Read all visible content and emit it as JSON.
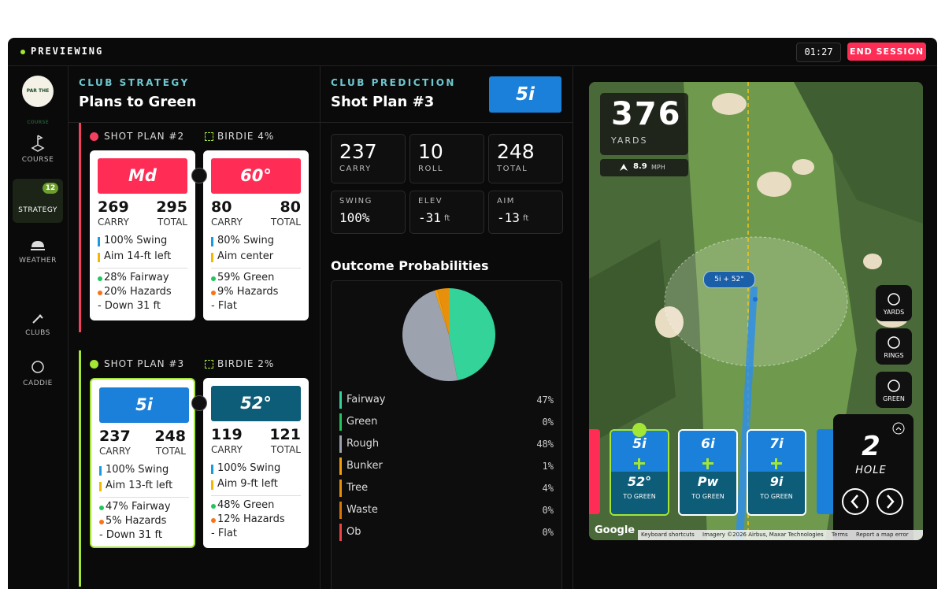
{
  "header": {
    "status": "PREVIEWING",
    "timer": "01:27",
    "end_button": "END SESSION"
  },
  "sidebar": {
    "logo": "PAR THE COURSE",
    "nav": [
      {
        "label": "COURSE"
      },
      {
        "label": "STRATEGY",
        "badge": "12"
      },
      {
        "label": "WEATHER"
      },
      {
        "label": "CLUBS"
      },
      {
        "label": "CADDIE"
      }
    ]
  },
  "strategy": {
    "eyebrow": "CLUB STRATEGY",
    "title": "Plans to Green",
    "labels": {
      "carry": "CARRY",
      "total": "TOTAL"
    },
    "plans": [
      {
        "name": "SHOT PLAN #2",
        "birdie": "BIRDIE 4%",
        "accent": "#f43f5e",
        "shots": [
          {
            "club": "Md",
            "color": "#ff2d55",
            "carry": "269",
            "total": "295",
            "swing": "100% Swing",
            "aim": "Aim 14-ft left",
            "fairway": "28% Fairway",
            "hazards": "20% Hazards",
            "slope": "- Down 31 ft"
          },
          {
            "club": "60°",
            "color": "#ff2d55",
            "carry": "80",
            "total": "80",
            "swing": "80% Swing",
            "aim": "Aim center",
            "fairway": "59% Green",
            "hazards": "9% Hazards",
            "slope": "- Flat"
          }
        ]
      },
      {
        "name": "SHOT PLAN #3",
        "birdie": "BIRDIE 2%",
        "accent": "#a3e635",
        "shots": [
          {
            "club": "5i",
            "color": "#1a80d9",
            "carry": "237",
            "total": "248",
            "swing": "100% Swing",
            "aim": "Aim 13-ft left",
            "fairway": "47% Fairway",
            "hazards": "5% Hazards",
            "slope": "- Down 31 ft"
          },
          {
            "club": "52°",
            "color": "#0d5c78",
            "carry": "119",
            "total": "121",
            "swing": "100% Swing",
            "aim": "Aim 9-ft left",
            "fairway": "48% Green",
            "hazards": "12% Hazards",
            "slope": "- Flat"
          }
        ]
      }
    ]
  },
  "prediction": {
    "eyebrow": "CLUB PREDICTION",
    "title": "Shot Plan #3",
    "club": "5i",
    "stats": [
      {
        "value": "237",
        "label": "CARRY"
      },
      {
        "value": "10",
        "label": "ROLL"
      },
      {
        "value": "248",
        "label": "TOTAL"
      }
    ],
    "details": [
      {
        "label": "SWING",
        "value": "100%"
      },
      {
        "label": "ELEV",
        "value": "-31",
        "unit": "ft"
      },
      {
        "label": "AIM",
        "value": "-13",
        "unit": "ft"
      }
    ]
  },
  "outcomes": {
    "title": "Outcome Probabilities",
    "items": [
      {
        "name": "Fairway",
        "color": "#34d399",
        "value": 47,
        "value_label": "47%"
      },
      {
        "name": "Green",
        "color": "#22c55e",
        "value": 0,
        "value_label": "0%"
      },
      {
        "name": "Rough",
        "color": "#9ca3af",
        "value": 48,
        "value_label": "48%"
      },
      {
        "name": "Bunker",
        "color": "#f59e0b",
        "value": 1,
        "value_label": "1%"
      },
      {
        "name": "Tree",
        "color": "#e8900c",
        "value": 4,
        "value_label": "4%"
      },
      {
        "name": "Waste",
        "color": "#d97706",
        "value": 0,
        "value_label": "0%"
      },
      {
        "name": "Ob",
        "color": "#ef4444",
        "value": 0,
        "value_label": "0%"
      }
    ]
  },
  "map": {
    "distance": "376",
    "distance_unit": "YARDS",
    "wind": "8.9",
    "wind_unit": "MPH",
    "shot_label": "5i + 52°",
    "buttons": [
      "YARDS",
      "RINGS",
      "GREEN"
    ],
    "clubs": [
      {
        "first": "5i",
        "second": "52°",
        "note": "TO GREEN"
      },
      {
        "first": "6i",
        "second": "Pw",
        "note": "TO GREEN"
      },
      {
        "first": "7i",
        "second": "9i",
        "note": "TO GREEN"
      }
    ],
    "hole": {
      "number": "2",
      "label": "HOLE"
    },
    "footer": {
      "brand": "Google",
      "links": [
        "Keyboard shortcuts",
        "Imagery ©2026 Airbus, Maxar Technologies",
        "Terms",
        "Report a map error"
      ]
    }
  }
}
